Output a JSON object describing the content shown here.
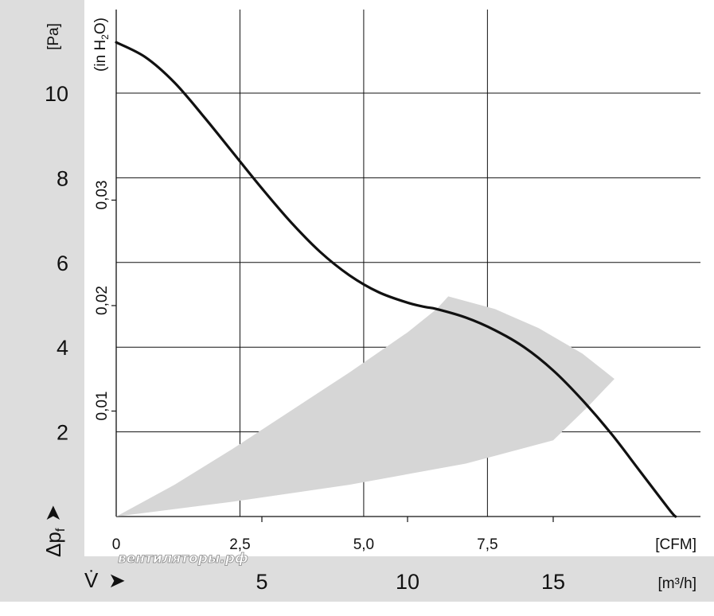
{
  "chart_data": {
    "type": "line",
    "y_unit_primary": "[Pa]",
    "y_unit_secondary": "(in H",
    "y_unit_secondary_sub": "2",
    "y_unit_secondary_end": "O)",
    "y_axis_symbol": "Δp",
    "y_axis_symbol_sub": "f",
    "x_unit_cfm": "[CFM]",
    "x_unit_m3h": "[m³/h]",
    "x_axis_symbol": "V̇",
    "arrow": "➤",
    "watermark": "вентиляторы.рф",
    "y_ticks_pa": [
      "2",
      "4",
      "6",
      "8",
      "10"
    ],
    "y_ticks_inh2o": [
      "0,01",
      "0,02",
      "0,03"
    ],
    "x_ticks_cfm": [
      "0",
      "2,5",
      "5,0",
      "7,5"
    ],
    "x_ticks_m3h": [
      "5",
      "10",
      "15"
    ],
    "xlim_m3h": [
      0,
      20
    ],
    "ylim_pa": [
      0,
      11.5
    ],
    "grid": true,
    "series": [
      {
        "x_m3h": [
          0,
          1,
          2,
          3,
          4,
          5,
          6,
          7,
          8,
          9,
          10,
          10.6,
          11,
          12,
          13,
          14,
          15,
          16,
          17,
          18,
          19,
          19.2
        ],
        "y_pa": [
          11.2,
          10.85,
          10.25,
          9.45,
          8.6,
          7.75,
          6.95,
          6.25,
          5.7,
          5.3,
          5.05,
          4.95,
          4.9,
          4.7,
          4.4,
          4.0,
          3.45,
          2.75,
          1.95,
          1.05,
          0.15,
          0
        ]
      }
    ],
    "operating_region": {
      "upper_edge": {
        "x_m3h": [
          0,
          2,
          4,
          6,
          8,
          10,
          11,
          11.4
        ],
        "y_pa": [
          0,
          0.75,
          1.6,
          2.5,
          3.4,
          4.35,
          4.9,
          5.2
        ]
      },
      "right_edge": {
        "x_m3h": [
          11.4,
          13,
          14.5,
          16,
          17.1
        ],
        "y_pa": [
          5.2,
          4.9,
          4.45,
          3.85,
          3.25
        ]
      },
      "lower_edge": {
        "x_m3h": [
          0,
          4,
          8,
          12,
          15,
          16.2
        ],
        "y_pa": [
          0,
          0.35,
          0.75,
          1.25,
          1.8,
          2.6
        ]
      }
    }
  }
}
